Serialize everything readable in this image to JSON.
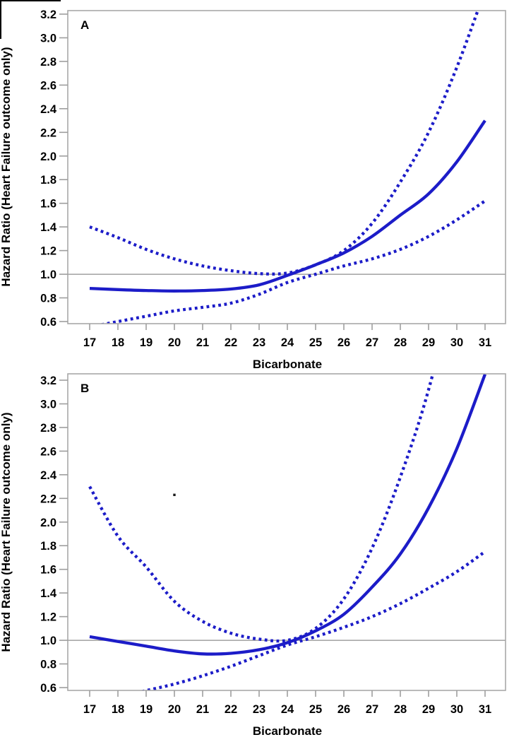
{
  "figure": {
    "background": "#ffffff",
    "curve_color": "#1c1cc8",
    "frame_color": "#a8a8a8",
    "tick_color": "#9e9e9e",
    "refline_color": "#8e8e8e",
    "text_color": "#000000"
  },
  "chart_data": [
    {
      "type": "line",
      "panel_label": "A",
      "xlabel": "Bicarbonate",
      "ylabel": "Hazard Ratio (Heart Failure outcome only)",
      "x_ticks": [
        17,
        18,
        19,
        20,
        21,
        22,
        23,
        24,
        25,
        26,
        27,
        28,
        29,
        30,
        31
      ],
      "y_ticks": [
        0.6,
        0.8,
        1.0,
        1.2,
        1.4,
        1.6,
        1.8,
        2.0,
        2.2,
        2.4,
        2.6,
        2.8,
        3.0,
        3.2
      ],
      "xlim": [
        16.2,
        31.7
      ],
      "ylim": [
        0.58,
        3.23
      ],
      "refline_y": 1.0,
      "grid": false,
      "legend": "none",
      "x": [
        17,
        18,
        19,
        20,
        21,
        22,
        23,
        24,
        25,
        26,
        27,
        28,
        29,
        30,
        31
      ],
      "series": [
        {
          "name": "hazard-ratio-estimate",
          "style": "solid",
          "values": [
            0.88,
            0.87,
            0.862,
            0.858,
            0.862,
            0.875,
            0.91,
            0.99,
            1.08,
            1.18,
            1.32,
            1.5,
            1.68,
            1.95,
            2.3
          ]
        },
        {
          "name": "upper-confidence-limit",
          "style": "dotted",
          "values": [
            1.4,
            1.31,
            1.21,
            1.13,
            1.07,
            1.03,
            1.005,
            1.01,
            1.08,
            1.2,
            1.43,
            1.78,
            2.2,
            2.75,
            3.4
          ]
        },
        {
          "name": "lower-confidence-limit",
          "style": "dotted",
          "values": [
            0.555,
            0.6,
            0.645,
            0.69,
            0.72,
            0.755,
            0.83,
            0.93,
            1.0,
            1.07,
            1.13,
            1.21,
            1.32,
            1.46,
            1.62
          ]
        }
      ],
      "annotations": []
    },
    {
      "type": "line",
      "panel_label": "B",
      "xlabel": "Bicarbonate",
      "ylabel": "Hazard Ratio (Heart Failure outcome only)",
      "x_ticks": [
        17,
        18,
        19,
        20,
        21,
        22,
        23,
        24,
        25,
        26,
        27,
        28,
        29,
        30,
        31
      ],
      "y_ticks": [
        0.6,
        0.8,
        1.0,
        1.2,
        1.4,
        1.6,
        1.8,
        2.0,
        2.2,
        2.4,
        2.6,
        2.8,
        3.0,
        3.2
      ],
      "xlim": [
        16.2,
        31.7
      ],
      "ylim": [
        0.58,
        3.25
      ],
      "refline_y": 1.0,
      "grid": false,
      "legend": "none",
      "x": [
        17,
        18,
        19,
        20,
        21,
        22,
        23,
        24,
        25,
        26,
        27,
        28,
        29,
        30,
        31
      ],
      "series": [
        {
          "name": "hazard-ratio-estimate",
          "style": "solid",
          "values": [
            1.03,
            0.99,
            0.95,
            0.91,
            0.885,
            0.89,
            0.92,
            0.98,
            1.08,
            1.22,
            1.45,
            1.73,
            2.12,
            2.62,
            3.25
          ]
        },
        {
          "name": "upper-confidence-limit",
          "style": "dotted",
          "values": [
            2.3,
            1.88,
            1.62,
            1.33,
            1.16,
            1.06,
            1.01,
            1.0,
            1.1,
            1.35,
            1.78,
            2.38,
            3.12,
            4.1,
            5.4
          ]
        },
        {
          "name": "lower-confidence-limit",
          "style": "dotted",
          "values": [
            0.47,
            0.52,
            0.575,
            0.63,
            0.7,
            0.78,
            0.87,
            0.96,
            1.03,
            1.11,
            1.2,
            1.31,
            1.44,
            1.58,
            1.75
          ]
        }
      ],
      "annotations": [
        {
          "type": "stray-dot",
          "x": 20.0,
          "hazard_ratio": 2.23
        }
      ]
    }
  ]
}
